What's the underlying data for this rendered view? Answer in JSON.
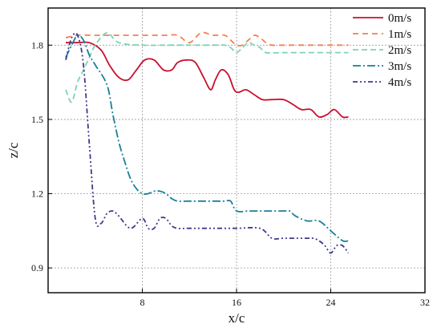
{
  "chart_data": {
    "type": "line",
    "title": "",
    "xlabel": "x/c",
    "ylabel": "z/c",
    "xlim": [
      0,
      32
    ],
    "ylim": [
      0.8,
      1.95
    ],
    "xticks": [
      8,
      16,
      24,
      32
    ],
    "yticks": [
      0.9,
      1.2,
      1.5,
      1.8
    ],
    "grid": true,
    "legend_position": "top-right",
    "series": [
      {
        "name": "0m/s",
        "color": "#c8102e",
        "dash": "solid",
        "x": [
          1.5,
          2.5,
          3.5,
          4.5,
          5.2,
          6.0,
          6.8,
          7.5,
          8.2,
          9.0,
          9.8,
          10.5,
          11.0,
          11.8,
          12.5,
          13.2,
          13.8,
          14.2,
          14.7,
          15.3,
          15.8,
          16.2,
          16.8,
          17.5,
          18.2,
          19.0,
          20.0,
          20.8,
          21.5,
          22.3,
          23.0,
          23.7,
          24.3,
          25.0,
          25.5
        ],
        "y": [
          1.81,
          1.81,
          1.81,
          1.78,
          1.72,
          1.67,
          1.66,
          1.7,
          1.74,
          1.74,
          1.7,
          1.7,
          1.73,
          1.74,
          1.73,
          1.67,
          1.62,
          1.66,
          1.7,
          1.68,
          1.62,
          1.61,
          1.62,
          1.6,
          1.58,
          1.58,
          1.58,
          1.56,
          1.54,
          1.54,
          1.51,
          1.52,
          1.54,
          1.51,
          1.51
        ]
      },
      {
        "name": "1m/s",
        "color": "#f47f55",
        "dash": "7,5",
        "x": [
          1.5,
          2.5,
          4.0,
          6.0,
          8.0,
          10.0,
          11.0,
          12.0,
          13.0,
          14.0,
          15.0,
          15.5,
          16.0,
          16.5,
          17.0,
          17.5,
          18.0,
          18.5,
          19.0,
          20.0,
          22.0,
          24.0,
          25.5
        ],
        "y": [
          1.83,
          1.84,
          1.84,
          1.84,
          1.84,
          1.84,
          1.84,
          1.81,
          1.85,
          1.84,
          1.84,
          1.82,
          1.8,
          1.8,
          1.82,
          1.84,
          1.83,
          1.81,
          1.8,
          1.8,
          1.8,
          1.8,
          1.8
        ]
      },
      {
        "name": "2m/s",
        "color": "#7ed3b2",
        "dash": "7,4",
        "x": [
          1.5,
          2.0,
          2.5,
          3.0,
          3.5,
          4.0,
          5.0,
          6.0,
          8.0,
          10.0,
          12.0,
          14.0,
          15.0,
          15.5,
          16.0,
          16.5,
          17.0,
          17.5,
          18.0,
          18.5,
          20.0,
          22.0,
          24.0,
          25.5
        ],
        "y": [
          1.62,
          1.57,
          1.65,
          1.7,
          1.75,
          1.8,
          1.85,
          1.81,
          1.8,
          1.8,
          1.8,
          1.8,
          1.8,
          1.79,
          1.77,
          1.79,
          1.81,
          1.8,
          1.79,
          1.77,
          1.77,
          1.77,
          1.77,
          1.77
        ]
      },
      {
        "name": "3m/s",
        "color": "#1a7f9a",
        "dash": "10,3,2,3",
        "x": [
          1.5,
          2.0,
          2.5,
          3.0,
          3.5,
          4.0,
          5.0,
          5.5,
          6.0,
          6.5,
          7.0,
          7.5,
          8.0,
          8.5,
          9.0,
          9.5,
          10.0,
          10.5,
          11.0,
          12.0,
          13.0,
          14.0,
          15.0,
          15.5,
          16.0,
          17.0,
          18.0,
          19.0,
          20.0,
          20.5,
          21.0,
          22.0,
          23.0,
          24.0,
          25.0,
          25.5
        ],
        "y": [
          1.75,
          1.8,
          1.84,
          1.82,
          1.76,
          1.72,
          1.64,
          1.52,
          1.41,
          1.33,
          1.26,
          1.22,
          1.2,
          1.2,
          1.21,
          1.21,
          1.2,
          1.18,
          1.17,
          1.17,
          1.17,
          1.17,
          1.17,
          1.17,
          1.13,
          1.13,
          1.13,
          1.13,
          1.13,
          1.13,
          1.11,
          1.09,
          1.09,
          1.05,
          1.01,
          1.01
        ]
      },
      {
        "name": "4m/s",
        "color": "#3c3a8c",
        "dash": "6,3,2,3,2,3",
        "x": [
          1.5,
          2.0,
          2.5,
          3.0,
          3.5,
          4.0,
          4.5,
          5.0,
          5.5,
          6.0,
          7.0,
          8.0,
          8.5,
          9.0,
          9.5,
          10.0,
          10.5,
          11.0,
          12.0,
          14.0,
          16.0,
          18.0,
          19.0,
          20.0,
          21.0,
          22.0,
          22.5,
          23.0,
          23.5,
          24.0,
          24.5,
          25.0,
          25.5
        ],
        "y": [
          1.74,
          1.83,
          1.84,
          1.72,
          1.4,
          1.1,
          1.08,
          1.12,
          1.13,
          1.11,
          1.06,
          1.1,
          1.06,
          1.06,
          1.1,
          1.1,
          1.07,
          1.06,
          1.06,
          1.06,
          1.06,
          1.06,
          1.02,
          1.02,
          1.02,
          1.02,
          1.02,
          1.01,
          0.99,
          0.96,
          0.99,
          0.99,
          0.96
        ]
      }
    ]
  }
}
